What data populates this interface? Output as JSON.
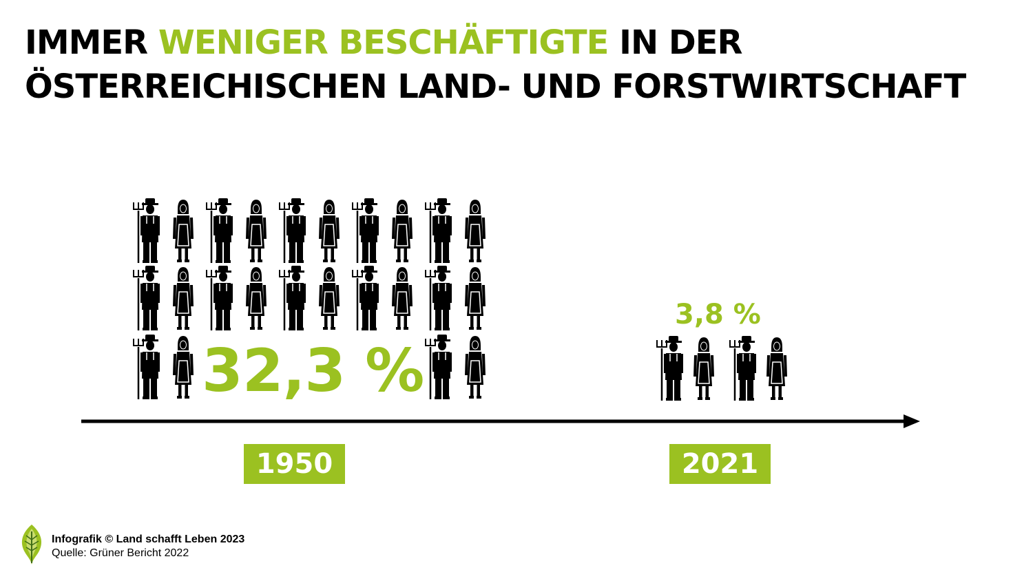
{
  "title": {
    "part1": "IMMER ",
    "highlight": "WENIGER BESCHÄFTIGTE",
    "part2": " IN DER",
    "line2": "ÖSTERREICHISCHEN LAND- UND FORSTWIRTSCHAFT"
  },
  "colors": {
    "accent": "#9bc121",
    "text": "#000000",
    "background": "#ffffff"
  },
  "icons": [
    "farmer-man-icon",
    "farmer-woman-icon"
  ],
  "chart_data": {
    "type": "pictogram",
    "title": "IMMER WENIGER BESCHÄFTIGTE IN DER ÖSTERREICHISCHEN LAND- UND FORSTWIRTSCHAFT",
    "categories": [
      "1950",
      "2021"
    ],
    "values": [
      32.3,
      3.8
    ],
    "value_labels": [
      "32,3 %",
      "3,8 %"
    ],
    "unit": "%"
  },
  "footer": {
    "credit": "Infografik © Land schafft Leben 2023",
    "source": "Quelle: Grüner Bericht 2022"
  }
}
